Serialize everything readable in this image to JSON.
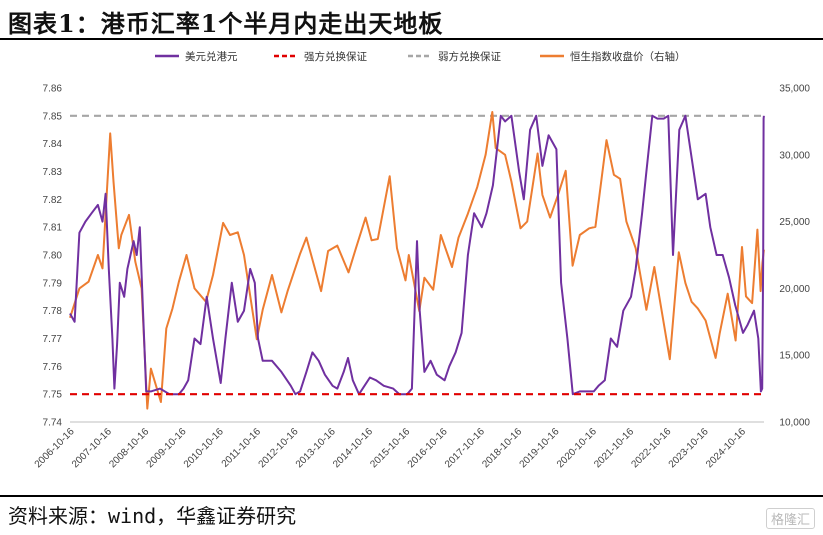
{
  "figure": {
    "title": "图表1：港币汇率1个半月内走出天地板",
    "source": "资料来源：wind，华鑫证券研究",
    "watermark": "格隆汇"
  },
  "chart_data": {
    "type": "line",
    "title": "图表1：港币汇率1个半月内走出天地板",
    "x_tick_labels": [
      "2006-10-16",
      "2007-10-16",
      "2008-10-16",
      "2009-10-16",
      "2010-10-16",
      "2011-10-16",
      "2012-10-16",
      "2013-10-16",
      "2014-10-16",
      "2015-10-16",
      "2016-10-16",
      "2017-10-16",
      "2018-10-16",
      "2019-10-16",
      "2020-10-16",
      "2021-10-16",
      "2022-10-16",
      "2023-10-16",
      "2024-10-16"
    ],
    "x_range": [
      "2006-10-01",
      "2025-05-10"
    ],
    "y_left": {
      "min": 7.74,
      "max": 7.86,
      "ticks": [
        "7.74",
        "7.75",
        "7.76",
        "7.77",
        "7.78",
        "7.79",
        "7.80",
        "7.81",
        "7.82",
        "7.83",
        "7.84",
        "7.85",
        "7.86"
      ]
    },
    "y_right": {
      "label": "右轴",
      "min": 10000,
      "max": 35000,
      "ticks": [
        "10,000",
        "15,000",
        "20,000",
        "25,000",
        "30,000",
        "35,000"
      ]
    },
    "legend_position": "top",
    "grid": false,
    "series": [
      {
        "name": "美元兑港元",
        "axis": "left",
        "color": "#7030A0",
        "style": "solid",
        "points": [
          [
            "2006-10-01",
            7.779
          ],
          [
            "2006-11-15",
            7.776
          ],
          [
            "2007-01-01",
            7.808
          ],
          [
            "2007-03-01",
            7.812
          ],
          [
            "2007-05-01",
            7.815
          ],
          [
            "2007-07-01",
            7.818
          ],
          [
            "2007-08-15",
            7.812
          ],
          [
            "2007-09-15",
            7.822
          ],
          [
            "2007-10-16",
            7.795
          ],
          [
            "2007-11-20",
            7.77
          ],
          [
            "2007-12-10",
            7.752
          ],
          [
            "2008-01-05",
            7.768
          ],
          [
            "2008-02-01",
            7.79
          ],
          [
            "2008-03-15",
            7.785
          ],
          [
            "2008-04-15",
            7.795
          ],
          [
            "2008-05-15",
            7.8
          ],
          [
            "2008-06-15",
            7.805
          ],
          [
            "2008-07-15",
            7.8
          ],
          [
            "2008-08-15",
            7.81
          ],
          [
            "2008-09-15",
            7.78
          ],
          [
            "2008-10-16",
            7.751
          ],
          [
            "2008-12-01",
            7.751
          ],
          [
            "2009-03-01",
            7.752
          ],
          [
            "2009-06-01",
            7.75
          ],
          [
            "2009-09-01",
            7.75
          ],
          [
            "2009-10-16",
            7.752
          ],
          [
            "2009-12-01",
            7.755
          ],
          [
            "2010-02-01",
            7.77
          ],
          [
            "2010-04-01",
            7.768
          ],
          [
            "2010-06-01",
            7.785
          ],
          [
            "2010-08-01",
            7.77
          ],
          [
            "2010-10-16",
            7.754
          ],
          [
            "2010-12-01",
            7.77
          ],
          [
            "2011-02-01",
            7.79
          ],
          [
            "2011-04-01",
            7.776
          ],
          [
            "2011-06-01",
            7.78
          ],
          [
            "2011-08-01",
            7.795
          ],
          [
            "2011-09-15",
            7.79
          ],
          [
            "2011-10-16",
            7.77
          ],
          [
            "2011-12-01",
            7.762
          ],
          [
            "2012-03-01",
            7.762
          ],
          [
            "2012-06-01",
            7.758
          ],
          [
            "2012-09-01",
            7.753
          ],
          [
            "2012-10-16",
            7.75
          ],
          [
            "2012-12-01",
            7.751
          ],
          [
            "2013-02-01",
            7.758
          ],
          [
            "2013-04-01",
            7.765
          ],
          [
            "2013-06-01",
            7.762
          ],
          [
            "2013-08-01",
            7.757
          ],
          [
            "2013-10-16",
            7.753
          ],
          [
            "2013-12-01",
            7.752
          ],
          [
            "2014-02-01",
            7.758
          ],
          [
            "2014-03-15",
            7.763
          ],
          [
            "2014-05-01",
            7.755
          ],
          [
            "2014-07-01",
            7.75
          ],
          [
            "2014-10-16",
            7.756
          ],
          [
            "2014-12-15",
            7.755
          ],
          [
            "2015-03-01",
            7.753
          ],
          [
            "2015-06-01",
            7.752
          ],
          [
            "2015-08-01",
            7.75
          ],
          [
            "2015-10-16",
            7.75
          ],
          [
            "2015-12-01",
            7.752
          ],
          [
            "2016-01-20",
            7.805
          ],
          [
            "2016-02-15",
            7.78
          ],
          [
            "2016-04-01",
            7.758
          ],
          [
            "2016-06-01",
            7.762
          ],
          [
            "2016-08-01",
            7.757
          ],
          [
            "2016-10-16",
            7.755
          ],
          [
            "2016-12-01",
            7.76
          ],
          [
            "2017-02-01",
            7.765
          ],
          [
            "2017-04-01",
            7.772
          ],
          [
            "2017-06-01",
            7.8
          ],
          [
            "2017-08-01",
            7.815
          ],
          [
            "2017-10-16",
            7.81
          ],
          [
            "2017-12-01",
            7.815
          ],
          [
            "2018-02-01",
            7.825
          ],
          [
            "2018-04-20",
            7.85
          ],
          [
            "2018-06-01",
            7.848
          ],
          [
            "2018-08-01",
            7.85
          ],
          [
            "2018-10-16",
            7.83
          ],
          [
            "2018-12-01",
            7.82
          ],
          [
            "2019-02-01",
            7.845
          ],
          [
            "2019-04-01",
            7.85
          ],
          [
            "2019-06-01",
            7.832
          ],
          [
            "2019-08-01",
            7.843
          ],
          [
            "2019-10-16",
            7.838
          ],
          [
            "2019-12-01",
            7.79
          ],
          [
            "2020-02-01",
            7.77
          ],
          [
            "2020-03-25",
            7.75
          ],
          [
            "2020-06-01",
            7.751
          ],
          [
            "2020-09-01",
            7.751
          ],
          [
            "2020-10-16",
            7.751
          ],
          [
            "2020-12-01",
            7.753
          ],
          [
            "2021-02-01",
            7.755
          ],
          [
            "2021-04-01",
            7.77
          ],
          [
            "2021-06-01",
            7.767
          ],
          [
            "2021-08-01",
            7.78
          ],
          [
            "2021-10-16",
            7.785
          ],
          [
            "2021-12-01",
            7.795
          ],
          [
            "2022-02-01",
            7.815
          ],
          [
            "2022-03-15",
            7.83
          ],
          [
            "2022-05-12",
            7.85
          ],
          [
            "2022-07-01",
            7.849
          ],
          [
            "2022-09-01",
            7.849
          ],
          [
            "2022-10-16",
            7.85
          ],
          [
            "2022-12-01",
            7.8
          ],
          [
            "2023-02-01",
            7.845
          ],
          [
            "2023-04-01",
            7.85
          ],
          [
            "2023-06-01",
            7.835
          ],
          [
            "2023-08-01",
            7.82
          ],
          [
            "2023-10-16",
            7.822
          ],
          [
            "2023-12-01",
            7.81
          ],
          [
            "2024-02-01",
            7.8
          ],
          [
            "2024-04-01",
            7.8
          ],
          [
            "2024-06-01",
            7.792
          ],
          [
            "2024-08-01",
            7.782
          ],
          [
            "2024-10-16",
            7.772
          ],
          [
            "2024-12-01",
            7.775
          ],
          [
            "2025-02-01",
            7.78
          ],
          [
            "2025-03-15",
            7.77
          ],
          [
            "2025-04-10",
            7.751
          ],
          [
            "2025-04-22",
            7.752
          ],
          [
            "2025-05-02",
            7.8
          ],
          [
            "2025-05-06",
            7.849
          ],
          [
            "2025-05-09",
            7.85
          ]
        ]
      },
      {
        "name": "强方兑换保证",
        "axis": "left",
        "color": "#E00000",
        "style": "dashed",
        "points": [
          [
            "2006-10-01",
            7.75
          ],
          [
            "2025-05-10",
            7.75
          ]
        ]
      },
      {
        "name": "弱方兑换保证",
        "axis": "left",
        "color": "#A6A6A6",
        "style": "dashed",
        "points": [
          [
            "2006-10-01",
            7.85
          ],
          [
            "2025-05-10",
            7.85
          ]
        ]
      },
      {
        "name": "恒生指数收盘价（右轴）",
        "axis": "right",
        "color": "#ED7D31",
        "style": "solid",
        "points": [
          [
            "2006-10-01",
            17800
          ],
          [
            "2007-01-01",
            20000
          ],
          [
            "2007-04-01",
            20500
          ],
          [
            "2007-07-01",
            22500
          ],
          [
            "2007-08-15",
            21500
          ],
          [
            "2007-10-30",
            31600
          ],
          [
            "2007-12-01",
            28000
          ],
          [
            "2008-01-22",
            23000
          ],
          [
            "2008-02-15",
            24000
          ],
          [
            "2008-05-01",
            25500
          ],
          [
            "2008-07-01",
            22000
          ],
          [
            "2008-09-01",
            20000
          ],
          [
            "2008-10-27",
            11000
          ],
          [
            "2008-12-01",
            14000
          ],
          [
            "2009-03-09",
            11500
          ],
          [
            "2009-05-01",
            17000
          ],
          [
            "2009-07-01",
            18500
          ],
          [
            "2009-09-01",
            20500
          ],
          [
            "2009-11-15",
            22500
          ],
          [
            "2010-02-01",
            20000
          ],
          [
            "2010-05-25",
            19000
          ],
          [
            "2010-08-01",
            21000
          ],
          [
            "2010-11-08",
            24900
          ],
          [
            "2011-01-15",
            24000
          ],
          [
            "2011-04-01",
            24200
          ],
          [
            "2011-06-01",
            22500
          ],
          [
            "2011-10-04",
            16200
          ],
          [
            "2011-12-01",
            18400
          ],
          [
            "2012-03-01",
            21000
          ],
          [
            "2012-06-01",
            18200
          ],
          [
            "2012-08-01",
            19800
          ],
          [
            "2012-12-01",
            22600
          ],
          [
            "2013-02-01",
            23800
          ],
          [
            "2013-06-25",
            19800
          ],
          [
            "2013-09-01",
            22800
          ],
          [
            "2013-12-01",
            23200
          ],
          [
            "2014-03-20",
            21200
          ],
          [
            "2014-06-01",
            23000
          ],
          [
            "2014-09-04",
            25300
          ],
          [
            "2014-11-01",
            23600
          ],
          [
            "2015-01-01",
            23700
          ],
          [
            "2015-04-28",
            28400
          ],
          [
            "2015-07-08",
            23000
          ],
          [
            "2015-09-29",
            20600
          ],
          [
            "2015-11-01",
            22500
          ],
          [
            "2016-02-12",
            18300
          ],
          [
            "2016-04-01",
            20800
          ],
          [
            "2016-06-27",
            19900
          ],
          [
            "2016-09-09",
            24000
          ],
          [
            "2016-12-28",
            21600
          ],
          [
            "2017-03-01",
            23800
          ],
          [
            "2017-06-01",
            25600
          ],
          [
            "2017-09-01",
            27600
          ],
          [
            "2017-11-22",
            30000
          ],
          [
            "2018-01-26",
            33200
          ],
          [
            "2018-03-01",
            30500
          ],
          [
            "2018-06-01",
            30000
          ],
          [
            "2018-08-01",
            28000
          ],
          [
            "2018-10-30",
            24500
          ],
          [
            "2019-01-03",
            25000
          ],
          [
            "2019-04-15",
            30100
          ],
          [
            "2019-06-01",
            27000
          ],
          [
            "2019-08-15",
            25300
          ],
          [
            "2019-11-01",
            27000
          ],
          [
            "2020-01-15",
            28800
          ],
          [
            "2020-03-23",
            21700
          ],
          [
            "2020-06-01",
            24000
          ],
          [
            "2020-09-01",
            24500
          ],
          [
            "2020-11-01",
            24600
          ],
          [
            "2021-02-18",
            31100
          ],
          [
            "2021-05-01",
            28500
          ],
          [
            "2021-07-01",
            28200
          ],
          [
            "2021-09-01",
            25000
          ],
          [
            "2021-12-01",
            23000
          ],
          [
            "2022-03-15",
            18400
          ],
          [
            "2022-06-01",
            21600
          ],
          [
            "2022-10-31",
            14700
          ],
          [
            "2023-01-27",
            22700
          ],
          [
            "2023-04-01",
            20400
          ],
          [
            "2023-06-01",
            19000
          ],
          [
            "2023-08-01",
            18500
          ],
          [
            "2023-10-16",
            17600
          ],
          [
            "2024-01-22",
            14800
          ],
          [
            "2024-03-01",
            16600
          ],
          [
            "2024-05-20",
            19600
          ],
          [
            "2024-08-05",
            16100
          ],
          [
            "2024-10-07",
            23100
          ],
          [
            "2024-11-15",
            19400
          ],
          [
            "2025-01-13",
            18900
          ],
          [
            "2025-03-06",
            24400
          ],
          [
            "2025-04-07",
            19800
          ],
          [
            "2025-04-24",
            21900
          ],
          [
            "2025-05-09",
            22900
          ]
        ]
      }
    ]
  }
}
